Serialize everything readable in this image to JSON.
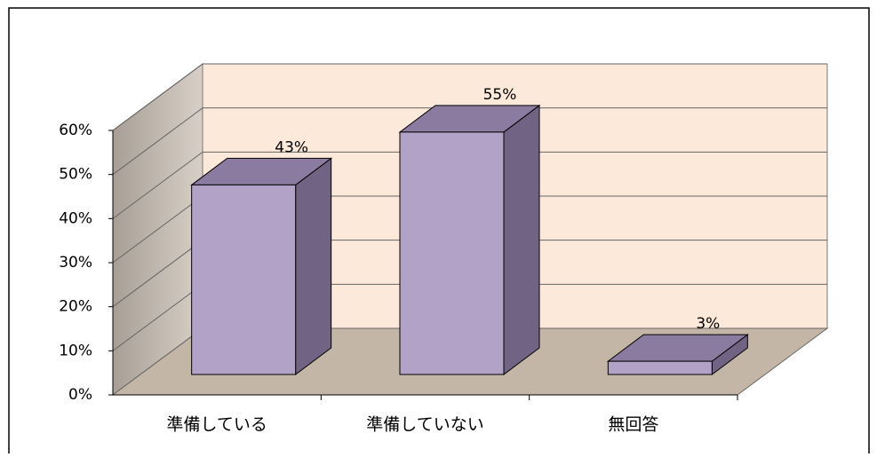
{
  "chart_data": {
    "type": "bar3d",
    "categories": [
      "準備している",
      "準備していない",
      "無回答"
    ],
    "values": [
      43,
      55,
      3
    ],
    "value_labels": [
      "43%",
      "55%",
      "3%"
    ],
    "color": "#b3a2c7",
    "ylim": [
      0,
      60
    ],
    "yticks": [
      {
        "value": 0,
        "label": "0%"
      },
      {
        "value": 10,
        "label": "10%"
      },
      {
        "value": 20,
        "label": "20%"
      },
      {
        "value": 30,
        "label": "30%"
      },
      {
        "value": 40,
        "label": "40%"
      },
      {
        "value": 50,
        "label": "50%"
      },
      {
        "value": 60,
        "label": "60%"
      }
    ],
    "grid": true
  }
}
